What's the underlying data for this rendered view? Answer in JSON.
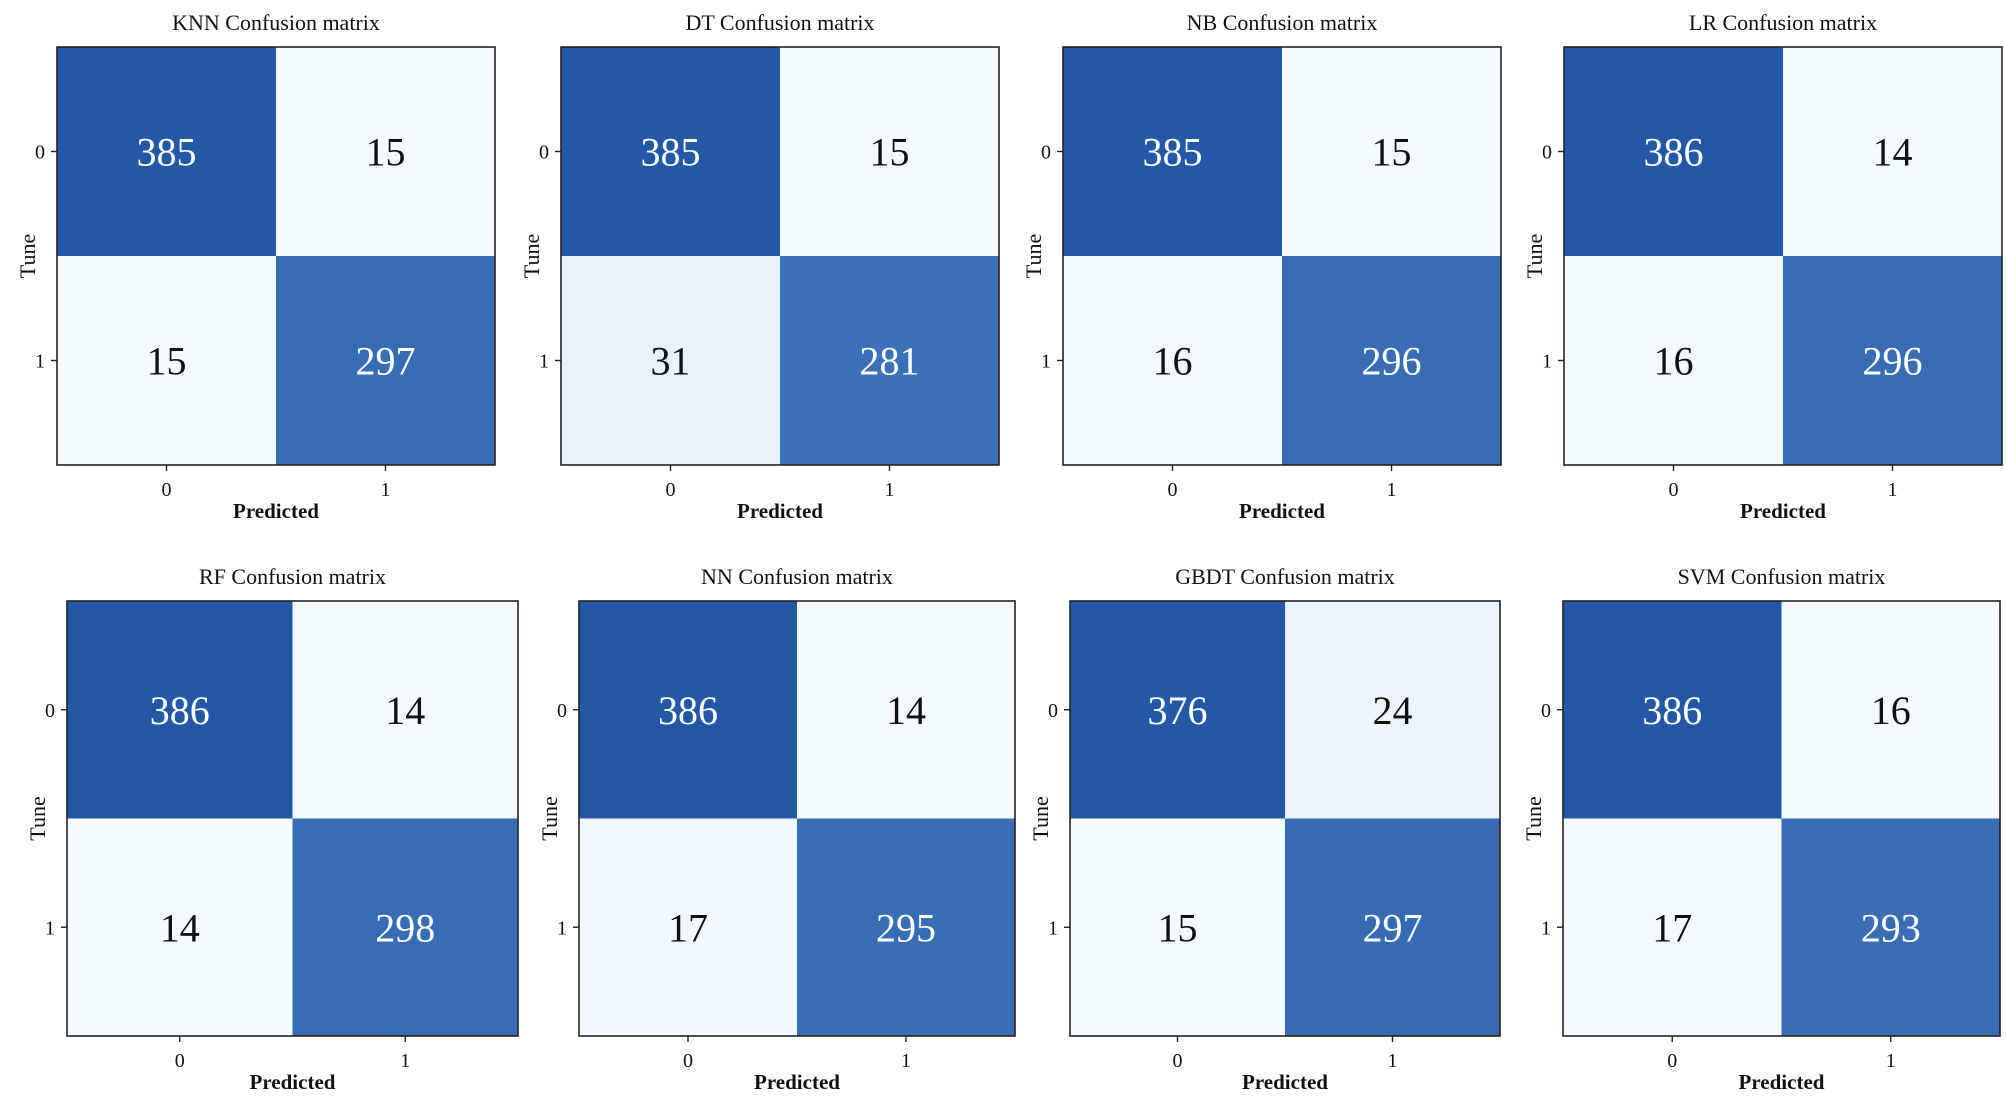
{
  "chart_data": [
    {
      "type": "heatmap",
      "title": "KNN Confusion matrix",
      "xlabel": "Predicted",
      "ylabel": "Tune",
      "x_ticks": [
        "0",
        "1"
      ],
      "y_ticks": [
        "0",
        "1"
      ],
      "values": [
        [
          385,
          15
        ],
        [
          15,
          297
        ]
      ]
    },
    {
      "type": "heatmap",
      "title": "DT Confusion matrix",
      "xlabel": "Predicted",
      "ylabel": "Tune",
      "x_ticks": [
        "0",
        "1"
      ],
      "y_ticks": [
        "0",
        "1"
      ],
      "values": [
        [
          385,
          15
        ],
        [
          31,
          281
        ]
      ]
    },
    {
      "type": "heatmap",
      "title": "NB Confusion matrix",
      "xlabel": "Predicted",
      "ylabel": "Tune",
      "x_ticks": [
        "0",
        "1"
      ],
      "y_ticks": [
        "0",
        "1"
      ],
      "values": [
        [
          385,
          15
        ],
        [
          16,
          296
        ]
      ]
    },
    {
      "type": "heatmap",
      "title": "LR Confusion matrix",
      "xlabel": "Predicted",
      "ylabel": "Tune",
      "x_ticks": [
        "0",
        "1"
      ],
      "y_ticks": [
        "0",
        "1"
      ],
      "values": [
        [
          386,
          14
        ],
        [
          16,
          296
        ]
      ]
    },
    {
      "type": "heatmap",
      "title": "RF Confusion matrix",
      "xlabel": "Predicted",
      "ylabel": "Tune",
      "x_ticks": [
        "0",
        "1"
      ],
      "y_ticks": [
        "0",
        "1"
      ],
      "values": [
        [
          386,
          14
        ],
        [
          14,
          298
        ]
      ]
    },
    {
      "type": "heatmap",
      "title": "NN Confusion matrix",
      "xlabel": "Predicted",
      "ylabel": "Tune",
      "x_ticks": [
        "0",
        "1"
      ],
      "y_ticks": [
        "0",
        "1"
      ],
      "values": [
        [
          386,
          14
        ],
        [
          17,
          295
        ]
      ]
    },
    {
      "type": "heatmap",
      "title": "GBDT Confusion matrix",
      "xlabel": "Predicted",
      "ylabel": "Tune",
      "x_ticks": [
        "0",
        "1"
      ],
      "y_ticks": [
        "0",
        "1"
      ],
      "values": [
        [
          376,
          24
        ],
        [
          15,
          297
        ]
      ]
    },
    {
      "type": "heatmap",
      "title": "SVM Confusion matrix",
      "xlabel": "Predicted",
      "ylabel": "Tune",
      "x_ticks": [
        "0",
        "1"
      ],
      "y_ticks": [
        "0",
        "1"
      ],
      "values": [
        [
          386,
          16
        ],
        [
          17,
          293
        ]
      ]
    }
  ],
  "colors": {
    "low": "#f4fbff",
    "dark": "#2258a5",
    "medium": "#4f84c4",
    "text_on_dark": "#ffffff",
    "text_on_light": "#111111",
    "frame": "#222222"
  },
  "colormap": "Blues"
}
